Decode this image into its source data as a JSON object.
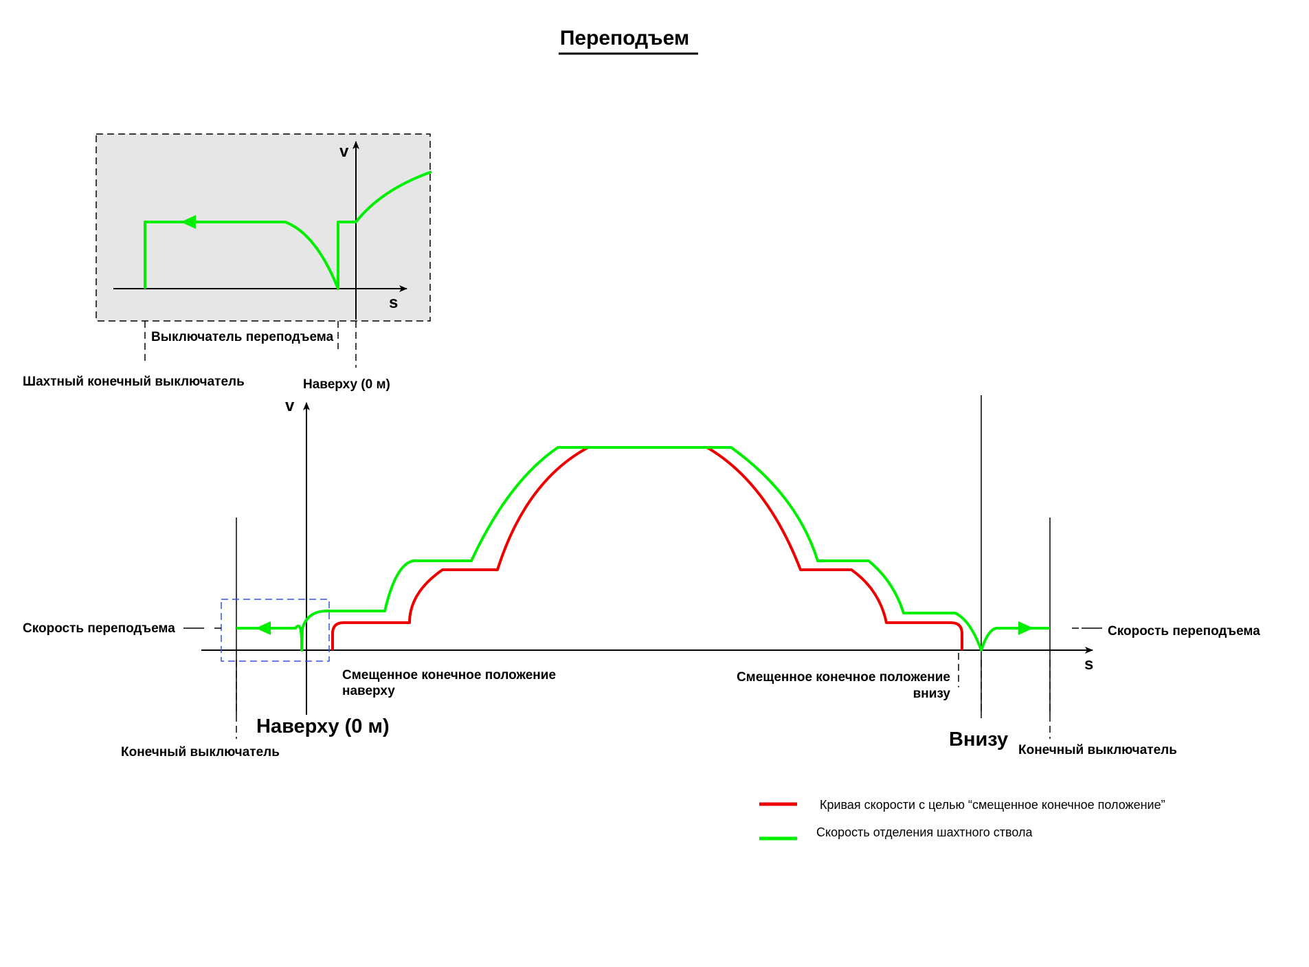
{
  "title": "Переподъем",
  "colors": {
    "green": "#00ee00",
    "red": "#ee0000",
    "inset_bg": "#e6e6e6",
    "selection_box": "#3355dd"
  },
  "inset": {
    "axis_v": "v",
    "axis_s": "s",
    "label_overtravel_switch": "Выключатель переподъема",
    "label_shaft_limit_switch": "Шахтный конечный выключатель",
    "label_top": "Наверху (0 м)"
  },
  "main": {
    "axis_v": "v",
    "axis_s": "s",
    "label_overtravel_speed_left": "Скорость переподъема",
    "label_overtravel_speed_right": "Скорость переподъема",
    "label_offset_top_line1": "Смещенное конечное положение",
    "label_offset_top_line2": "наверху",
    "label_offset_bottom_line1": "Смещенное конечное положение",
    "label_offset_bottom_line2": "внизу",
    "label_top_big": "Наверху (0 м)",
    "label_bottom_big": "Внизу",
    "label_limit_switch_left": "Конечный выключатель",
    "label_limit_switch_right": "Конечный выключатель"
  },
  "legend": [
    {
      "text": "Кривая скорости с целью “смещенное конечное положение”",
      "color": "#ee0000"
    },
    {
      "text": "Скорость отделения шахтного ствола",
      "color": "#00ee00"
    }
  ]
}
